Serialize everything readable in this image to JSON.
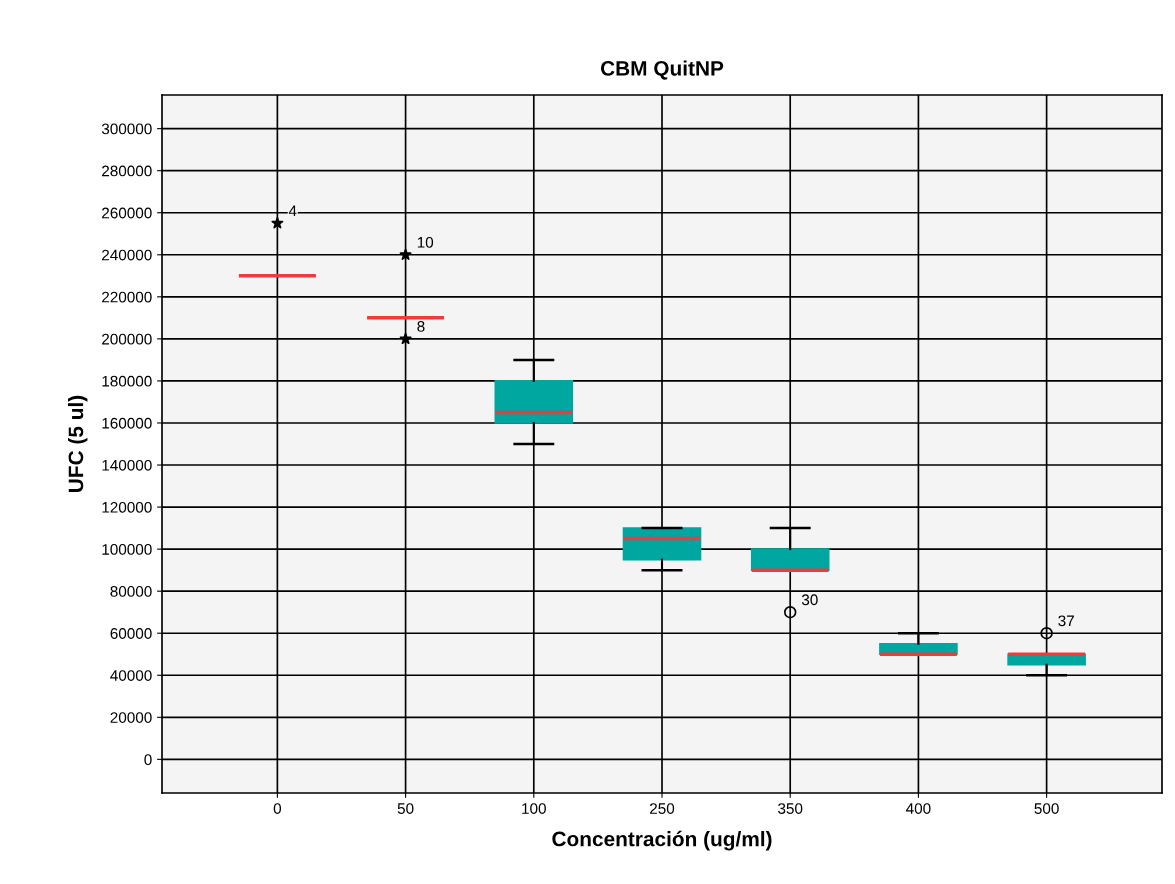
{
  "chart_data": {
    "type": "box",
    "title": "CBM QuitNP",
    "xlabel": "Concentración (ug/ml)",
    "ylabel": "UFC (5 ul)",
    "categories": [
      "0",
      "50",
      "100",
      "250",
      "350",
      "400",
      "500"
    ],
    "color": "#00a6a0",
    "boxes": [
      {
        "low": 230000,
        "q1": 230000,
        "median": 230000,
        "q3": 230000,
        "high": 230000
      },
      {
        "low": 210000,
        "q1": 210000,
        "median": 210000,
        "q3": 210000,
        "high": 210000
      },
      {
        "low": 150000,
        "q1": 160000,
        "median": 165000,
        "q3": 180000,
        "high": 190000
      },
      {
        "low": 90000,
        "q1": 95000,
        "median": 105000,
        "q3": 110000,
        "high": 110000
      },
      {
        "low": 90000,
        "q1": 90000,
        "median": 90000,
        "q3": 100000,
        "high": 110000
      },
      {
        "low": 50000,
        "q1": 50000,
        "median": 50000,
        "q3": 55000,
        "high": 60000
      },
      {
        "low": 40000,
        "q1": 45000,
        "median": 50000,
        "q3": 50000,
        "high": 50000
      }
    ],
    "series": [
      {
        "type": "scatter",
        "marker": "star",
        "color": "#000000",
        "x": [
          "0",
          "50",
          "50"
        ],
        "values": [
          255000,
          240000,
          200000
        ]
      },
      {
        "type": "scatter",
        "marker": "circle",
        "color": "#000000",
        "x": [
          "350",
          "500"
        ],
        "values": [
          70000,
          60000
        ]
      }
    ],
    "annotations": [
      {
        "text": "4",
        "x": "0",
        "y": 255000
      },
      {
        "text": "10",
        "x": "50",
        "y": 240000
      },
      {
        "text": "8",
        "x": "50",
        "y": 200000
      },
      {
        "text": "30",
        "x": "350",
        "y": 70000
      },
      {
        "text": "37",
        "x": "500",
        "y": 60000
      }
    ],
    "ylim": [
      -16000,
      316000
    ],
    "yticks": [
      0,
      20000,
      40000,
      60000,
      80000,
      100000,
      120000,
      140000,
      160000,
      180000,
      200000,
      220000,
      240000,
      260000,
      280000,
      300000
    ],
    "grid": true
  }
}
